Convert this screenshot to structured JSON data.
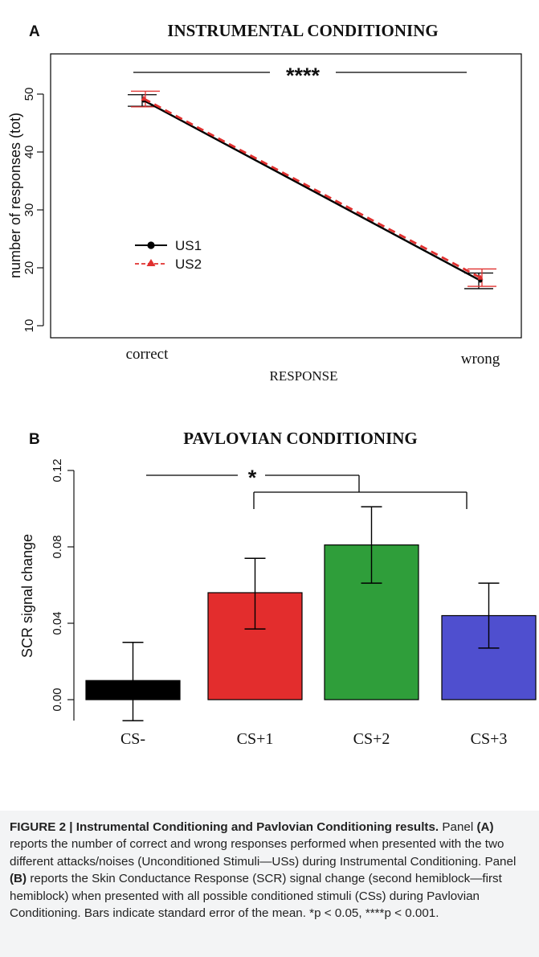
{
  "chart_data": [
    {
      "panel": "A",
      "type": "line",
      "title": "INSTRUMENTAL CONDITIONING",
      "xlabel": "RESPONSE",
      "ylabel": "number of responses (tot)",
      "categories": [
        "correct",
        "wrong"
      ],
      "ylim": [
        9,
        53
      ],
      "yticks": [
        10,
        20,
        30,
        40,
        50
      ],
      "series": [
        {
          "name": "US1",
          "values": [
            48.9,
            17.8
          ],
          "err_low": [
            47.9,
            16.4
          ],
          "err_high": [
            49.9,
            19.1
          ],
          "color": "#000000",
          "marker": "circle",
          "line": "solid"
        },
        {
          "name": "US2",
          "values": [
            49.2,
            18.3
          ],
          "err_low": [
            47.8,
            16.8
          ],
          "err_high": [
            50.5,
            19.8
          ],
          "color": "#e0302f",
          "marker": "triangle",
          "line": "dashed"
        }
      ],
      "annotation": "****",
      "legend": "left"
    },
    {
      "panel": "B",
      "type": "bar",
      "title": "PAVLOVIAN CONDITIONING",
      "ylabel": "SCR signal change",
      "categories": [
        "CS-",
        "CS+1",
        "CS+2",
        "CS+3"
      ],
      "values": [
        0.01,
        0.056,
        0.081,
        0.044
      ],
      "err_low": [
        -0.011,
        0.037,
        0.061,
        0.027
      ],
      "err_high": [
        0.03,
        0.074,
        0.101,
        0.061
      ],
      "colors": [
        "#000000",
        "#e32d2d",
        "#2f9e3a",
        "#4f4fcf"
      ],
      "ylim": [
        -0.014,
        0.125
      ],
      "yticks": [
        "0.00",
        "0.04",
        "0.08",
        "0.12"
      ],
      "yticks_values": [
        0,
        0.04,
        0.08,
        0.12
      ],
      "annotation": "*"
    }
  ],
  "caption": {
    "lead": "FIGURE 2 | Instrumental Conditioning and Pavlovian Conditioning results.",
    "p1": " Panel ",
    "a": "(A)",
    "p2": " reports the number of correct and wrong responses performed when presented with the two different attacks/noises (Unconditioned Stimuli—USs) during Instrumental Conditioning. Panel ",
    "b": "(B)",
    "p3": " reports the Skin Conductance Response (SCR) signal change (second hemiblock—first hemiblock) when presented with all possible conditioned stimuli (CSs) during Pavlovian Conditioning. Bars indicate standard error of the mean. ",
    "p4": "*p < 0.05, ****p < 0.001."
  }
}
